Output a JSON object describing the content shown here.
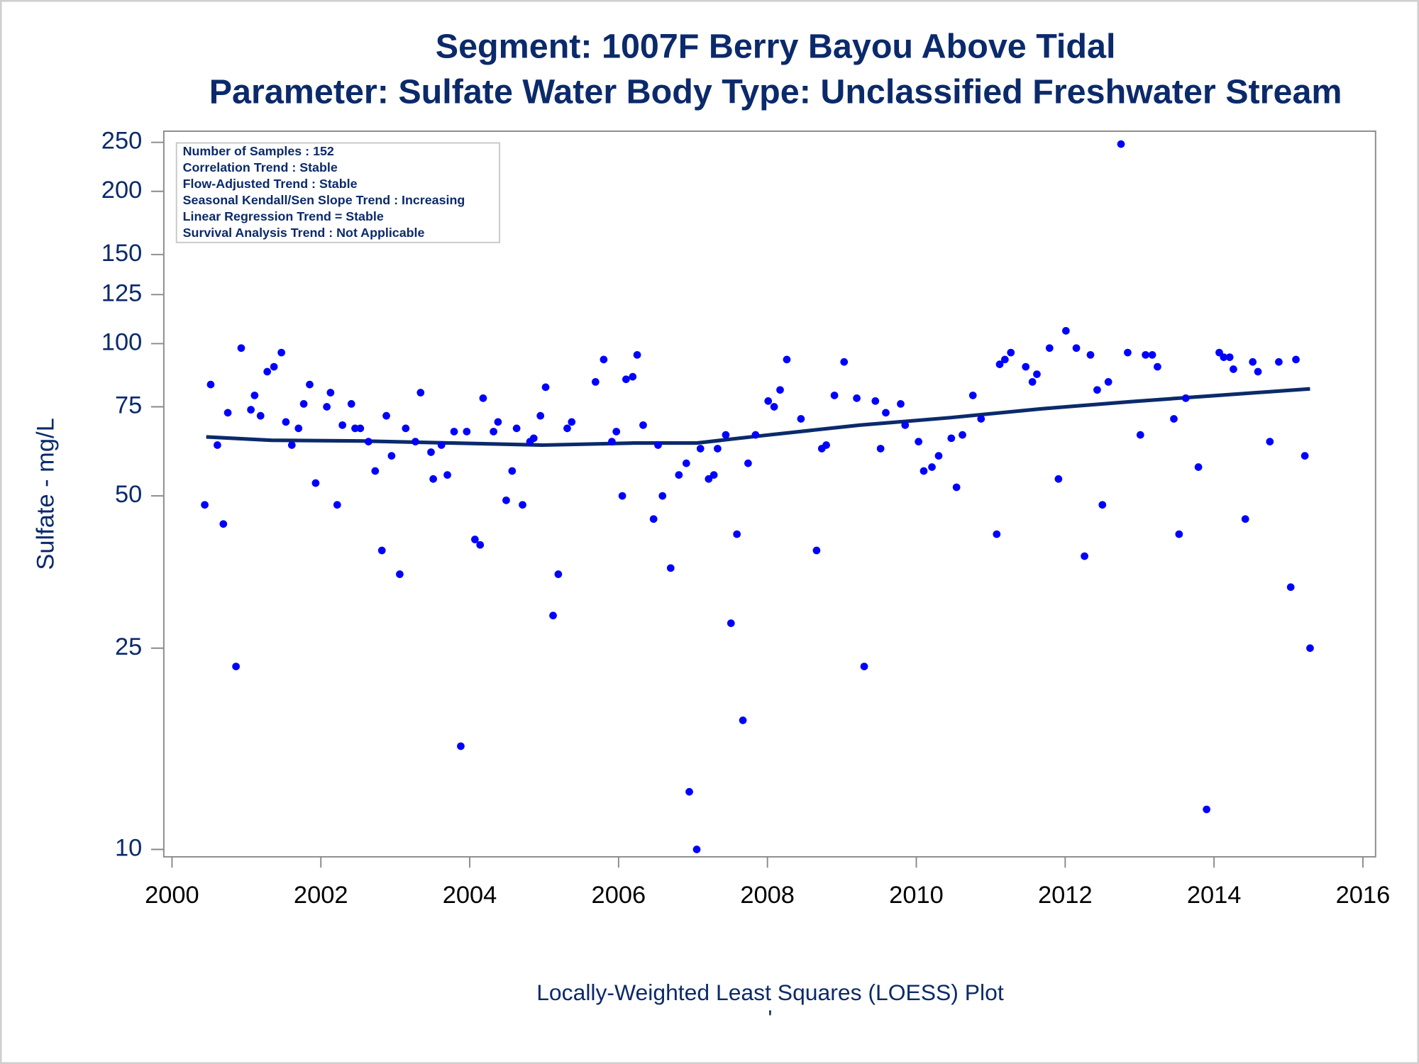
{
  "chart_data": {
    "type": "scatter",
    "title": "Segment: 1007F  Berry Bayou Above Tidal",
    "subtitle": "Parameter: Sulfate   Water Body Type: Unclassified Freshwater Stream",
    "y_label": "Sulfate - mg/L",
    "caption": "Locally-Weighted Least Squares (LOESS) Plot",
    "footnote": "'",
    "info": [
      "Number of Samples : 152",
      "Correlation Trend : Stable",
      "Flow-Adjusted Trend : Stable",
      "Seasonal Kendall/Sen Slope Trend : Increasing",
      "Linear Regression Trend = Stable",
      "Survival Analysis Trend : Not Applicable"
    ],
    "log_y": true,
    "xlim": [
      1999.89,
      2016.17
    ],
    "xticks": [
      2000,
      2002,
      2004,
      2006,
      2008,
      2010,
      2012,
      2014,
      2016
    ],
    "ylim": [
      9.67,
      263
    ],
    "yticks": [
      10,
      25,
      50,
      75,
      100,
      125,
      150,
      200,
      250
    ],
    "points": {
      "color": "#0000ff",
      "x": [
        2000.44,
        2000.52,
        2000.61,
        2000.69,
        2000.75,
        2000.86,
        2000.93,
        2001.06,
        2001.11,
        2001.19,
        2001.28,
        2001.37,
        2001.47,
        2001.53,
        2001.61,
        2001.7,
        2001.77,
        2001.85,
        2001.93,
        2002.08,
        2002.13,
        2002.22,
        2002.29,
        2002.41,
        2002.46,
        2002.53,
        2002.64,
        2002.73,
        2002.82,
        2002.88,
        2002.95,
        2003.06,
        2003.14,
        2003.27,
        2003.34,
        2003.48,
        2003.51,
        2003.62,
        2003.7,
        2003.79,
        2003.88,
        2003.96,
        2004.07,
        2004.14,
        2004.18,
        2004.32,
        2004.38,
        2004.49,
        2004.57,
        2004.63,
        2004.71,
        2004.81,
        2004.86,
        2004.95,
        2005.02,
        2005.12,
        2005.19,
        2005.31,
        2005.37,
        2005.69,
        2005.8,
        2005.91,
        2005.97,
        2006.05,
        2006.1,
        2006.19,
        2006.25,
        2006.33,
        2006.47,
        2006.53,
        2006.59,
        2006.7,
        2006.81,
        2006.91,
        2006.95,
        2007.05,
        2007.1,
        2007.21,
        2007.28,
        2007.33,
        2007.44,
        2007.51,
        2007.59,
        2007.67,
        2007.74,
        2007.84,
        2008.01,
        2008.09,
        2008.17,
        2008.26,
        2008.45,
        2008.66,
        2008.73,
        2008.79,
        2008.9,
        2009.03,
        2009.2,
        2009.3,
        2009.45,
        2009.52,
        2009.59,
        2009.79,
        2009.85,
        2010.03,
        2010.1,
        2010.21,
        2010.3,
        2010.47,
        2010.54,
        2010.62,
        2010.76,
        2010.87,
        2011.08,
        2011.12,
        2011.19,
        2011.27,
        2011.47,
        2011.56,
        2011.62,
        2011.79,
        2011.91,
        2012.01,
        2012.15,
        2012.26,
        2012.34,
        2012.43,
        2012.5,
        2012.58,
        2012.75,
        2012.84,
        2013.01,
        2013.08,
        2013.17,
        2013.24,
        2013.46,
        2013.53,
        2013.62,
        2013.79,
        2013.9,
        2014.07,
        2014.13,
        2014.21,
        2014.26,
        2014.42,
        2014.52,
        2014.59,
        2014.75,
        2014.87,
        2015.03,
        2015.1,
        2015.22,
        2015.29
      ],
      "y": [
        48,
        83,
        63,
        44,
        73,
        23,
        98,
        74,
        79,
        72,
        88,
        90,
        96,
        70,
        63,
        68,
        76,
        83,
        53,
        75,
        80,
        48,
        69,
        76,
        68,
        68,
        64,
        56,
        39,
        72,
        60,
        35,
        68,
        64,
        80,
        61,
        54,
        63,
        55,
        67,
        16,
        67,
        41,
        40,
        78,
        67,
        70,
        49,
        56,
        68,
        48,
        64,
        65,
        72,
        82,
        29,
        35,
        68,
        70,
        84,
        93,
        64,
        67,
        50,
        85,
        86,
        95,
        69,
        45,
        63,
        50,
        36,
        55,
        58,
        13,
        10,
        62,
        54,
        55,
        62,
        66,
        28,
        42,
        18,
        58,
        66,
        77,
        75,
        81,
        93,
        71,
        39,
        62,
        63,
        79,
        92,
        78,
        23,
        77,
        62,
        73,
        76,
        69,
        64,
        56,
        57,
        60,
        65,
        52,
        66,
        79,
        71,
        42,
        91,
        93,
        96,
        90,
        84,
        87,
        98,
        54,
        106,
        98,
        38,
        95,
        81,
        48,
        84,
        248,
        96,
        66,
        95,
        95,
        90,
        71,
        42,
        78,
        57,
        12,
        96,
        94,
        94,
        89,
        45,
        92,
        88,
        64,
        92,
        33,
        93,
        60,
        25
      ]
    },
    "loess": {
      "color": "#0b2a6b",
      "x": [
        2000.46,
        2001.34,
        2002.55,
        2003.77,
        2004.98,
        2006.2,
        2007.05,
        2008.02,
        2009.24,
        2010.46,
        2011.67,
        2012.89,
        2014.1,
        2015.29
      ],
      "y": [
        65.4,
        64.4,
        64.2,
        63.6,
        63.0,
        63.6,
        63.6,
        66.0,
        69.0,
        71.4,
        74.3,
        76.8,
        79.1,
        81.4
      ]
    }
  }
}
